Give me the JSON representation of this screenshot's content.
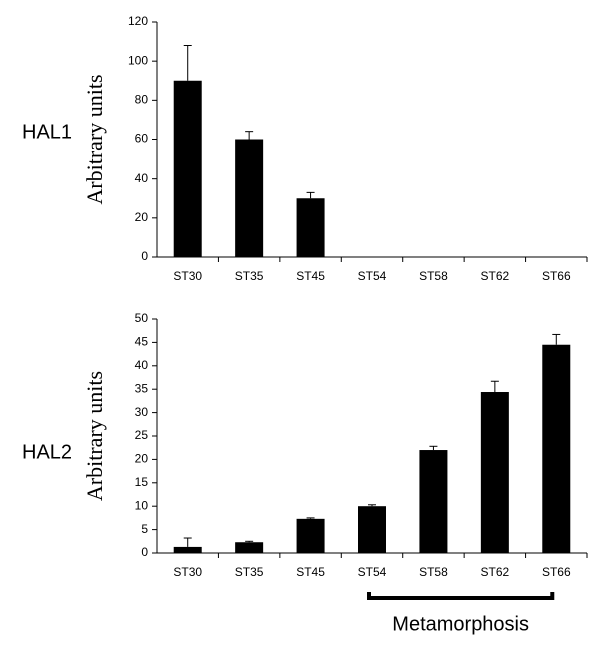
{
  "chart_data": [
    {
      "type": "bar",
      "label": "HAL1",
      "y_label": "Arbitrary units",
      "categories": [
        "ST30",
        "ST35",
        "ST45",
        "ST54",
        "ST58",
        "ST62",
        "ST66"
      ],
      "values": [
        90,
        60,
        30,
        0,
        0,
        0,
        0
      ],
      "errors": [
        18,
        4,
        3,
        0,
        0,
        0,
        0
      ],
      "color": "#000000",
      "ylim": [
        0,
        120
      ],
      "yticks": [
        0,
        20,
        40,
        60,
        80,
        100,
        120
      ]
    },
    {
      "type": "bar",
      "label": "HAL2",
      "y_label": "Arbitrary units",
      "categories": [
        "ST30",
        "ST35",
        "ST45",
        "ST54",
        "ST58",
        "ST62",
        "ST66"
      ],
      "values": [
        1.3,
        2.3,
        7.3,
        10.0,
        22.0,
        34.4,
        44.5
      ],
      "errors": [
        1.9,
        0.2,
        0.2,
        0.3,
        0.8,
        2.3,
        2.2
      ],
      "color": "#000000",
      "ylim": [
        0,
        50
      ],
      "yticks": [
        0,
        5,
        10,
        15,
        20,
        25,
        30,
        35,
        40,
        45,
        50
      ],
      "annotation": "Metamorphosis"
    }
  ]
}
